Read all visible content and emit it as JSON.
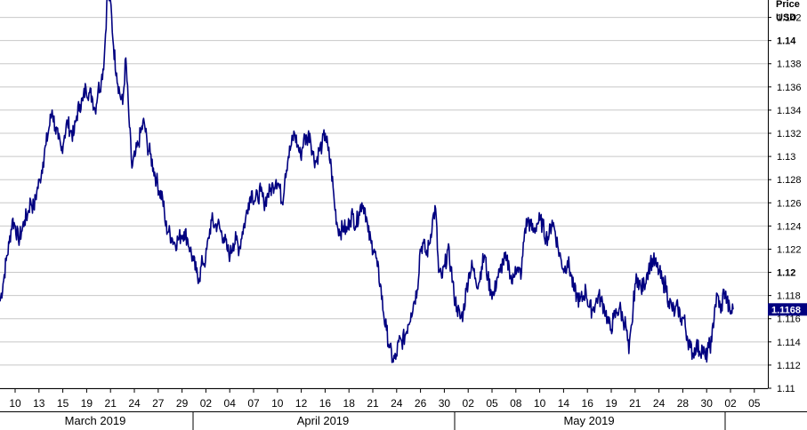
{
  "chart_data": {
    "type": "line",
    "title": "",
    "price_header": [
      "Price",
      "USD"
    ],
    "xlabel": "",
    "ylabel": "",
    "ylim": [
      1.11,
      1.1435
    ],
    "y_ticks": [
      "1.142",
      "1.14",
      "1.138",
      "1.136",
      "1.134",
      "1.132",
      "1.13",
      "1.128",
      "1.126",
      "1.124",
      "1.122",
      "1.12",
      "1.118",
      "1.116",
      "1.114",
      "1.112",
      "1.11"
    ],
    "y_ticks_bold": [
      "1.14",
      "1.12"
    ],
    "grid": true,
    "line_color": "#000080",
    "current_value": "1.1168",
    "x_ticks": [
      "10",
      "13",
      "15",
      "19",
      "21",
      "24",
      "27",
      "29",
      "02",
      "04",
      "07",
      "10",
      "12",
      "16",
      "18",
      "21",
      "24",
      "26",
      "30",
      "02",
      "05",
      "08",
      "10",
      "14",
      "16",
      "19",
      "21",
      "24",
      "28",
      "30",
      "02",
      "05"
    ],
    "months": [
      "March 2019",
      "April 2019",
      "May 2019"
    ],
    "series": [
      {
        "values": [
          1.1175,
          1.119,
          1.121,
          1.1225,
          1.1245,
          1.124,
          1.1228,
          1.1235,
          1.1245,
          1.125,
          1.1262,
          1.1255,
          1.127,
          1.128,
          1.1295,
          1.131,
          1.1325,
          1.134,
          1.1325,
          1.1315,
          1.1305,
          1.1318,
          1.133,
          1.1322,
          1.1318,
          1.1335,
          1.1345,
          1.1348,
          1.136,
          1.1355,
          1.1352,
          1.134,
          1.1358,
          1.1365,
          1.1385,
          1.144,
          1.1435,
          1.1395,
          1.1372,
          1.1355,
          1.1345,
          1.1385,
          1.1335,
          1.129,
          1.13,
          1.131,
          1.1322,
          1.133,
          1.131,
          1.1302,
          1.129,
          1.128,
          1.127,
          1.1265,
          1.124,
          1.1235,
          1.123,
          1.1225,
          1.1228,
          1.1232,
          1.1235,
          1.123,
          1.122,
          1.121,
          1.12,
          1.1195,
          1.121,
          1.121,
          1.123,
          1.1245,
          1.124,
          1.1242,
          1.1235,
          1.123,
          1.122,
          1.1215,
          1.1225,
          1.1228,
          1.122,
          1.1235,
          1.1245,
          1.126,
          1.127,
          1.1262,
          1.1265,
          1.127,
          1.126,
          1.1265,
          1.127,
          1.1275,
          1.128,
          1.1275,
          1.126,
          1.1285,
          1.13,
          1.131,
          1.132,
          1.131,
          1.13,
          1.1315,
          1.1315,
          1.132,
          1.1302,
          1.1295,
          1.1305,
          1.131,
          1.132,
          1.1305,
          1.129,
          1.126,
          1.124,
          1.1235,
          1.124,
          1.1235,
          1.1245,
          1.125,
          1.124,
          1.1252,
          1.126,
          1.1255,
          1.1235,
          1.1225,
          1.122,
          1.1205,
          1.119,
          1.1165,
          1.115,
          1.1135,
          1.1125,
          1.1125,
          1.114,
          1.114,
          1.1145,
          1.1155,
          1.1165,
          1.1175,
          1.1185,
          1.122,
          1.1225,
          1.1215,
          1.1225,
          1.1245,
          1.1255,
          1.12,
          1.1195,
          1.1205,
          1.122,
          1.1205,
          1.118,
          1.117,
          1.116,
          1.1165,
          1.1185,
          1.12,
          1.1205,
          1.1195,
          1.119,
          1.1205,
          1.1215,
          1.1195,
          1.1185,
          1.118,
          1.1195,
          1.12,
          1.121,
          1.121,
          1.1205,
          1.119,
          1.1205,
          1.12,
          1.12,
          1.1235,
          1.1245,
          1.124,
          1.1235,
          1.1242,
          1.1245,
          1.124,
          1.123,
          1.1232,
          1.1245,
          1.1235,
          1.122,
          1.121,
          1.1202,
          1.121,
          1.12,
          1.1185,
          1.118,
          1.1175,
          1.1178,
          1.1185,
          1.117,
          1.1168,
          1.1172,
          1.118,
          1.1175,
          1.117,
          1.116,
          1.115,
          1.116,
          1.1165,
          1.117,
          1.116,
          1.1155,
          1.113,
          1.1155,
          1.119,
          1.1195,
          1.1185,
          1.119,
          1.12,
          1.1208,
          1.121,
          1.1205,
          1.12,
          1.119,
          1.119,
          1.1175,
          1.117,
          1.1165,
          1.117,
          1.116,
          1.116,
          1.1145,
          1.1135,
          1.113,
          1.1138,
          1.1132,
          1.1135,
          1.1125,
          1.1135,
          1.114,
          1.117,
          1.118,
          1.1165,
          1.1185,
          1.1175,
          1.1165,
          1.1168
        ]
      }
    ]
  }
}
